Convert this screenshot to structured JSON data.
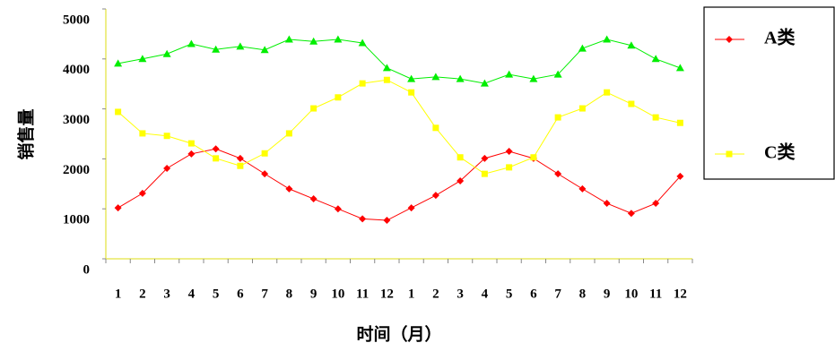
{
  "chart_data": {
    "type": "line",
    "x_label": "时间（月）",
    "y_label": "销售量",
    "categories": [
      "1",
      "2",
      "3",
      "4",
      "5",
      "6",
      "7",
      "8",
      "9",
      "10",
      "11",
      "12",
      "1",
      "2",
      "3",
      "4",
      "5",
      "6",
      "7",
      "8",
      "9",
      "10",
      "11",
      "12"
    ],
    "series": [
      {
        "name": "A类",
        "color": "#ff0000",
        "marker": "diamond",
        "values": [
          1020,
          1310,
          1810,
          2100,
          2200,
          2010,
          1700,
          1400,
          1200,
          1000,
          800,
          770,
          1020,
          1270,
          1560,
          2010,
          2150,
          2010,
          1700,
          1400,
          1110,
          910,
          1110,
          1650
        ]
      },
      {
        "color": "#00ee00",
        "marker": "triangle",
        "values": [
          3910,
          4000,
          4100,
          4300,
          4190,
          4250,
          4180,
          4390,
          4350,
          4390,
          4320,
          3820,
          3600,
          3640,
          3600,
          3510,
          3690,
          3600,
          3690,
          4210,
          4390,
          4270,
          4000,
          3820
        ]
      },
      {
        "name": "C类",
        "color": "#ffff00",
        "marker": "square",
        "values": [
          2940,
          2510,
          2460,
          2310,
          2010,
          1860,
          2110,
          2510,
          3010,
          3230,
          3510,
          3580,
          3330,
          2620,
          2030,
          1700,
          1830,
          2030,
          2830,
          3010,
          3330,
          3100,
          2830,
          2720
        ]
      }
    ],
    "ylim": [
      0,
      5000
    ],
    "yticks": [
      0,
      1000,
      2000,
      3000,
      4000,
      5000
    ],
    "grid": false
  }
}
